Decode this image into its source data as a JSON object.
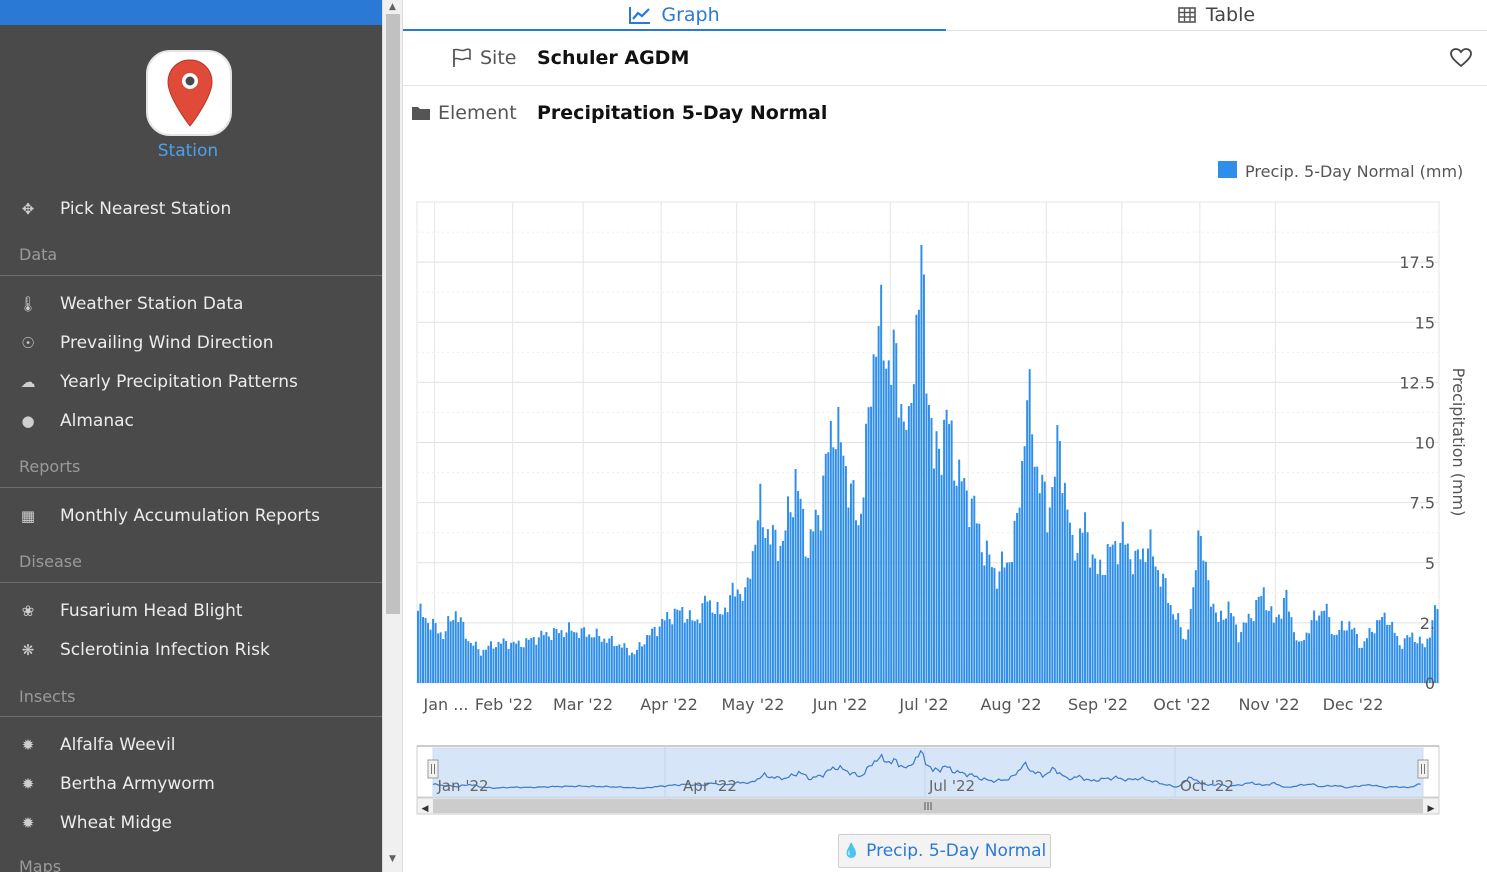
{
  "sidebar": {
    "station_label": "Station",
    "pick_nearest": "Pick Nearest Station",
    "sections": {
      "data": "Data",
      "reports": "Reports",
      "disease": "Disease",
      "insects": "Insects",
      "maps": "Maps"
    },
    "data_items": [
      "Weather Station Data",
      "Prevailing Wind Direction",
      "Yearly Precipitation Patterns",
      "Almanac"
    ],
    "report_items": [
      "Monthly Accumulation Reports"
    ],
    "disease_items": [
      "Fusarium Head Blight",
      "Sclerotinia Infection Risk"
    ],
    "insect_items": [
      "Alfalfa Weevil",
      "Bertha Armyworm",
      "Wheat Midge"
    ]
  },
  "tabs": {
    "graph": "Graph",
    "table": "Table"
  },
  "site": {
    "label": "Site",
    "value": "Schuler AGDM"
  },
  "element": {
    "label": "Element",
    "value": "Precipitation 5-Day Normal"
  },
  "series_button": "Precip. 5-Day Normal",
  "colors": {
    "accent": "#2a7ad5",
    "bar": "#2e8ee9",
    "sidebar_bg": "#4a4a4a",
    "pin": "#e04a39"
  },
  "chart_data": {
    "type": "bar",
    "legend": "Precip. 5-Day Normal (mm)",
    "legend_position": "top-right",
    "ylabel": "Precipitation (mm)",
    "y_axis_side": "right",
    "ylim": [
      0,
      20
    ],
    "y_ticks": [
      "0",
      "2.",
      "5",
      "7.5",
      "10",
      "12.5",
      "15",
      "17.5"
    ],
    "x_ticks": [
      "Jan ...",
      "Feb '22",
      "Mar '22",
      "Apr '22",
      "May '22",
      "Jun '22",
      "Jul '22",
      "Aug '22",
      "Sep '22",
      "Oct '22",
      "Nov '22",
      "Dec '22"
    ],
    "navigator_ticks": [
      "Jan '22",
      "Apr '22",
      "Jul '22",
      "Oct '22"
    ],
    "grid": true,
    "anchors": [
      [
        0,
        3.0
      ],
      [
        5,
        2.5
      ],
      [
        10,
        2.0
      ],
      [
        15,
        3.0
      ],
      [
        20,
        1.8
      ],
      [
        25,
        1.3
      ],
      [
        30,
        1.6
      ],
      [
        35,
        1.7
      ],
      [
        40,
        1.6
      ],
      [
        50,
        2.0
      ],
      [
        60,
        2.2
      ],
      [
        70,
        2.0
      ],
      [
        80,
        1.6
      ],
      [
        86,
        1.2
      ],
      [
        90,
        1.8
      ],
      [
        100,
        2.8
      ],
      [
        105,
        3.0
      ],
      [
        110,
        2.5
      ],
      [
        115,
        3.5
      ],
      [
        120,
        2.8
      ],
      [
        127,
        4.0
      ],
      [
        130,
        3.5
      ],
      [
        133,
        5.5
      ],
      [
        136,
        7.2
      ],
      [
        140,
        6.0
      ],
      [
        145,
        5.8
      ],
      [
        150,
        8.5
      ],
      [
        155,
        5.5
      ],
      [
        160,
        7.5
      ],
      [
        165,
        11.0
      ],
      [
        170,
        9.0
      ],
      [
        175,
        6.5
      ],
      [
        178,
        9.5
      ],
      [
        182,
        15.0
      ],
      [
        185,
        14.0
      ],
      [
        190,
        13.0
      ],
      [
        195,
        10.0
      ],
      [
        197,
        14.0
      ],
      [
        200,
        17.0
      ],
      [
        205,
        9.0
      ],
      [
        210,
        11.0
      ],
      [
        215,
        8.5
      ],
      [
        220,
        7.5
      ],
      [
        225,
        5.5
      ],
      [
        230,
        4.5
      ],
      [
        235,
        5.2
      ],
      [
        238,
        6.5
      ],
      [
        242,
        12.0
      ],
      [
        246,
        9.0
      ],
      [
        250,
        7.0
      ],
      [
        255,
        10.0
      ],
      [
        260,
        5.5
      ],
      [
        265,
        6.5
      ],
      [
        270,
        4.5
      ],
      [
        275,
        5.5
      ],
      [
        280,
        6.0
      ],
      [
        285,
        5.0
      ],
      [
        290,
        5.8
      ],
      [
        295,
        4.5
      ],
      [
        300,
        3.0
      ],
      [
        305,
        1.8
      ],
      [
        308,
        3.5
      ],
      [
        310,
        6.8
      ],
      [
        313,
        4.5
      ],
      [
        318,
        2.5
      ],
      [
        322,
        3.2
      ],
      [
        326,
        2.0
      ],
      [
        332,
        3.0
      ],
      [
        336,
        3.8
      ],
      [
        340,
        2.5
      ],
      [
        345,
        3.5
      ],
      [
        350,
        1.5
      ],
      [
        355,
        2.5
      ],
      [
        360,
        3.2
      ],
      [
        364,
        2.0
      ],
      [
        370,
        2.5
      ],
      [
        375,
        1.5
      ],
      [
        380,
        2.4
      ],
      [
        385,
        2.8
      ],
      [
        390,
        1.6
      ],
      [
        395,
        2.0
      ],
      [
        400,
        1.5
      ],
      [
        405,
        3.2
      ]
    ],
    "bar_count": 406
  }
}
